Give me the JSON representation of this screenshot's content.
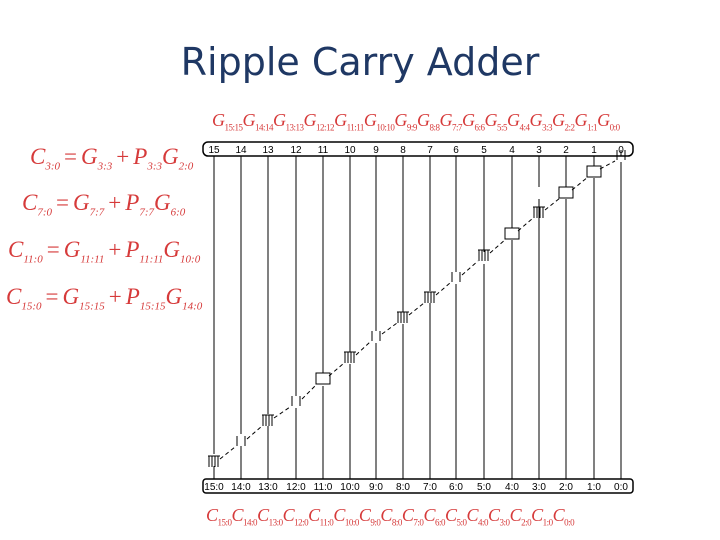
{
  "title": "Ripple Carry Adder",
  "equations": [
    {
      "lhs": "C",
      "lhs_sub": "3:0",
      "a": "G",
      "a_sub": "3:3",
      "b": "P",
      "b_sub": "3:3",
      "c": "G",
      "c_sub": "2:0"
    },
    {
      "lhs": "C",
      "lhs_sub": "7:0",
      "a": "G",
      "a_sub": "7:7",
      "b": "P",
      "b_sub": "7:7",
      "c": "G",
      "c_sub": "6:0"
    },
    {
      "lhs": "C",
      "lhs_sub": "11:0",
      "a": "G",
      "a_sub": "11:11",
      "b": "P",
      "b_sub": "11:11",
      "c": "G",
      "c_sub": "10:0"
    },
    {
      "lhs": "C",
      "lhs_sub": "15:0",
      "a": "G",
      "a_sub": "15:15",
      "b": "P",
      "b_sub": "15:15",
      "c": "G",
      "c_sub": "14:0"
    }
  ],
  "operators": {
    "eq": "=",
    "plus": "+"
  },
  "top_signals": [
    {
      "sym": "G",
      "sub": "15:15"
    },
    {
      "sym": "G",
      "sub": "14:14"
    },
    {
      "sym": "G",
      "sub": "13:13"
    },
    {
      "sym": "G",
      "sub": "12:12"
    },
    {
      "sym": "G",
      "sub": "11:11"
    },
    {
      "sym": "G",
      "sub": "10:10"
    },
    {
      "sym": "G",
      "sub": "9:9"
    },
    {
      "sym": "G",
      "sub": "8:8"
    },
    {
      "sym": "G",
      "sub": "7:7"
    },
    {
      "sym": "G",
      "sub": "6:6"
    },
    {
      "sym": "G",
      "sub": "5:5"
    },
    {
      "sym": "G",
      "sub": "4:4"
    },
    {
      "sym": "G",
      "sub": "3:3"
    },
    {
      "sym": "G",
      "sub": "2:2"
    },
    {
      "sym": "G",
      "sub": "1:1"
    },
    {
      "sym": "G",
      "sub": "0:0"
    }
  ],
  "bottom_signals": [
    {
      "sym": "C",
      "sub": "15:0"
    },
    {
      "sym": "C",
      "sub": "14:0"
    },
    {
      "sym": "C",
      "sub": "13:0"
    },
    {
      "sym": "C",
      "sub": "12:0"
    },
    {
      "sym": "C",
      "sub": "11:0"
    },
    {
      "sym": "C",
      "sub": "10:0"
    },
    {
      "sym": "C",
      "sub": "9:0"
    },
    {
      "sym": "C",
      "sub": "8:0"
    },
    {
      "sym": "C",
      "sub": "7:0"
    },
    {
      "sym": "C",
      "sub": "6:0"
    },
    {
      "sym": "C",
      "sub": "5:0"
    },
    {
      "sym": "C",
      "sub": "4:0"
    },
    {
      "sym": "C",
      "sub": "3:0"
    },
    {
      "sym": "C",
      "sub": "2:0"
    },
    {
      "sym": "C",
      "sub": "1:0"
    },
    {
      "sym": "C",
      "sub": "0:0"
    }
  ],
  "bit_labels": [
    "15",
    "14",
    "13",
    "12",
    "11",
    "10",
    "9",
    "8",
    "7",
    "6",
    "5",
    "4",
    "3",
    "2",
    "1",
    "0"
  ],
  "range_labels": [
    "15:0",
    "14:0",
    "13:0",
    "12:0",
    "11:0",
    "10:0",
    "9:0",
    "8:0",
    "7:0",
    "6:0",
    "5:0",
    "4:0",
    "3:0",
    "2:0",
    "1:0",
    "0:0"
  ],
  "colors": {
    "title": "#1f3864",
    "equations": "#d63a3a",
    "lines": "#000000"
  }
}
